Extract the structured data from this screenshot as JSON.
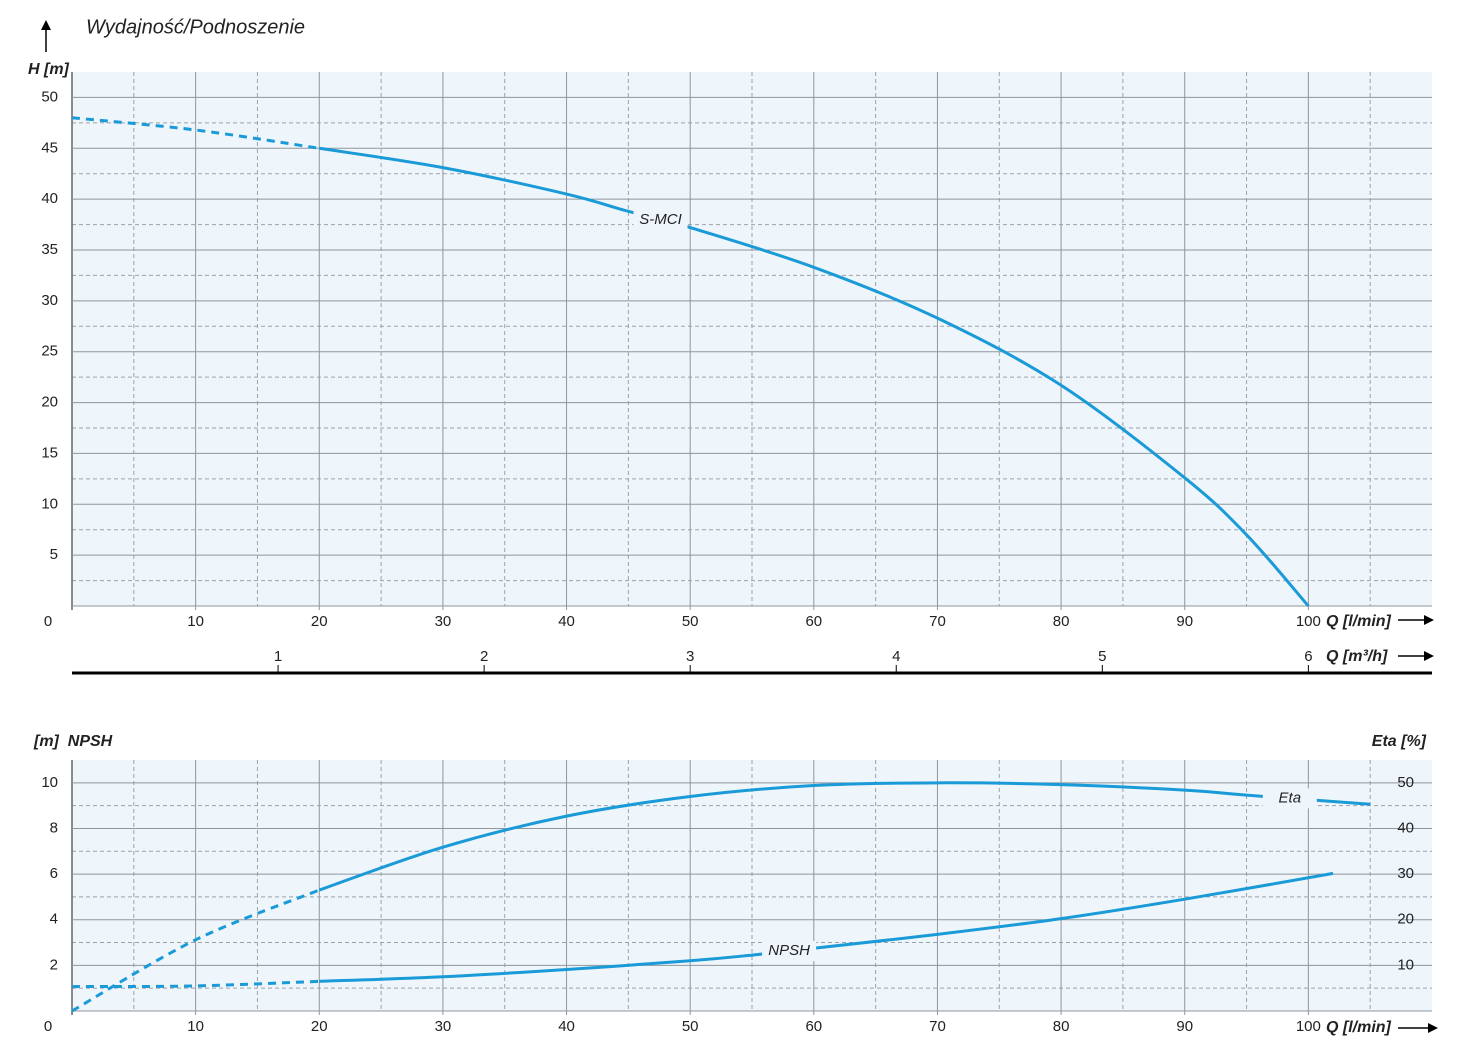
{
  "chart_data": [
    {
      "type": "line",
      "title": "Wydajność/Podnoszenie",
      "ylabel": "H [m]",
      "xlabel": "Q [l/min]",
      "x2label": "Q [m³/h]",
      "xlim": [
        0,
        110
      ],
      "xticks": [
        0,
        10,
        20,
        30,
        40,
        50,
        60,
        70,
        80,
        90,
        100
      ],
      "xminorticks": [
        5,
        15,
        25,
        35,
        45,
        55,
        65,
        75,
        85,
        95,
        105
      ],
      "x2lim": [
        0,
        6.6
      ],
      "x2ticks": [
        1,
        2,
        3,
        4,
        5,
        6
      ],
      "ylim": [
        0,
        52.5
      ],
      "yticks": [
        5,
        10,
        15,
        20,
        25,
        30,
        35,
        40,
        45,
        50
      ],
      "yminorticks": [
        2.5,
        7.5,
        12.5,
        17.5,
        22.5,
        27.5,
        32.5,
        37.5,
        42.5,
        47.5
      ],
      "grid": true,
      "series": [
        {
          "name": "S-MCI",
          "color": "#1a9ad7",
          "dashed_below": 20,
          "x": [
            0,
            10,
            20,
            30,
            40,
            45,
            50,
            60,
            70,
            80,
            90,
            95,
            100
          ],
          "values": [
            48,
            46.8,
            45,
            43.1,
            40.5,
            38.8,
            37.2,
            33.3,
            28.3,
            21.7,
            12.6,
            7,
            0
          ]
        }
      ]
    },
    {
      "type": "line",
      "ylabel": "[m]  NPSH",
      "y2label": "Eta [%]",
      "xlabel": "Q [l/min]",
      "xlim": [
        0,
        110
      ],
      "xticks": [
        0,
        10,
        20,
        30,
        40,
        50,
        60,
        70,
        80,
        90,
        100
      ],
      "xminorticks": [
        5,
        15,
        25,
        35,
        45,
        55,
        65,
        75,
        85,
        95,
        105
      ],
      "ylim": [
        0,
        11
      ],
      "yticks": [
        2,
        4,
        6,
        8,
        10
      ],
      "yminorticks": [
        1,
        3,
        5,
        7,
        9
      ],
      "y2lim": [
        0,
        55
      ],
      "y2ticks": [
        10,
        20,
        30,
        40,
        50
      ],
      "grid": true,
      "series": [
        {
          "name": "NPSH",
          "color": "#1a9ad7",
          "dashed_below": 20,
          "x": [
            0,
            10,
            20,
            30,
            40,
            50,
            55,
            60,
            70,
            80,
            90,
            102
          ],
          "values": [
            1.07,
            1.1,
            1.3,
            1.5,
            1.82,
            2.2,
            2.45,
            2.75,
            3.36,
            4.05,
            4.9,
            6.03
          ]
        },
        {
          "name": "Eta",
          "color": "#1a9ad7",
          "axis": "y2",
          "dashed_below": 20,
          "x": [
            0,
            10,
            20,
            30,
            40,
            50,
            60,
            70,
            80,
            90,
            95,
            105
          ],
          "values": [
            0,
            15.6,
            26.5,
            35.9,
            42.7,
            47,
            49.4,
            50,
            49.6,
            48.4,
            47.3,
            45.3
          ]
        }
      ]
    }
  ]
}
